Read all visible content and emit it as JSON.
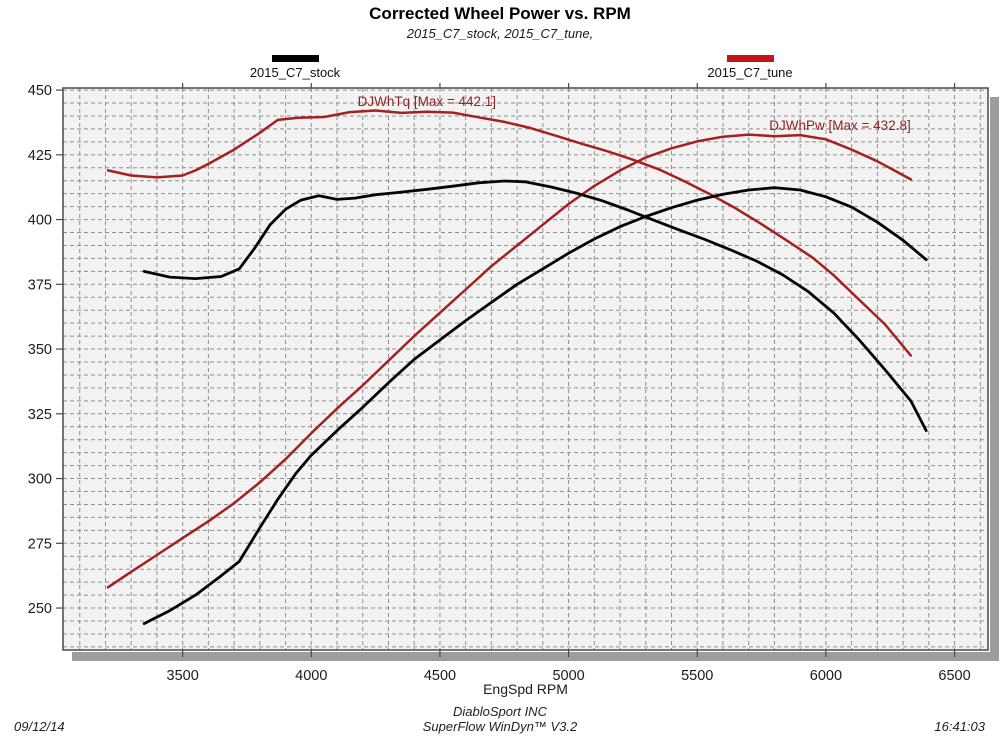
{
  "header": {
    "title": "Corrected Wheel Power vs. RPM",
    "subtitle": "2015_C7_stock, 2015_C7_tune,"
  },
  "legend": [
    {
      "label": "2015_C7_stock",
      "color": "#000000"
    },
    {
      "label": "2015_C7_tune",
      "color": "#c41414"
    }
  ],
  "footer": {
    "date": "09/12/14",
    "brand": "DiabloSport INC",
    "software": "SuperFlow WinDyn™ V3.2",
    "time": "16:41:03"
  },
  "chart_data": {
    "type": "line",
    "title": "Corrected Wheel Power vs. RPM",
    "subtitle": "2015_C7_stock, 2015_C7_tune,",
    "xlabel": "EngSpd RPM",
    "ylabel": "",
    "xlim": [
      3035,
      6630
    ],
    "ylim": [
      233.8,
      450.8
    ],
    "x_ticks": [
      3500,
      4000,
      4500,
      5000,
      5500,
      6000,
      6500
    ],
    "y_ticks": [
      250,
      275,
      300,
      325,
      350,
      375,
      400,
      425,
      450
    ],
    "grid": {
      "on": true,
      "x_minor_step": 100,
      "y_minor_step": 5,
      "dash": [
        4,
        3
      ],
      "color": "#8f8f8f"
    },
    "legend_position": "top",
    "annotations": [
      {
        "text": "DJWhTq [Max = 442.1]",
        "rpm": 4180,
        "value": 445.3,
        "color": "#8e2323"
      },
      {
        "text": "DJWhPw [Max = 432.8]",
        "rpm": 5780,
        "value": 436.2,
        "color": "#8e2323"
      }
    ],
    "series": [
      {
        "name": "2015_C7_tune DJWhTq",
        "run": "2015_C7_tune",
        "channel": "DJWhTq",
        "max": 442.1,
        "color": "#a32121",
        "width": 2.5,
        "points": [
          [
            3210,
            419
          ],
          [
            3300,
            417
          ],
          [
            3400,
            416.3
          ],
          [
            3500,
            417
          ],
          [
            3550,
            419
          ],
          [
            3600,
            421.5
          ],
          [
            3700,
            427
          ],
          [
            3800,
            433.5
          ],
          [
            3870,
            438.5
          ],
          [
            3950,
            439.3
          ],
          [
            4050,
            439.6
          ],
          [
            4150,
            441.5
          ],
          [
            4250,
            442.1
          ],
          [
            4350,
            441.2
          ],
          [
            4450,
            441.6
          ],
          [
            4550,
            441.3
          ],
          [
            4650,
            439.5
          ],
          [
            4750,
            437.7
          ],
          [
            4850,
            435.4
          ],
          [
            4950,
            432.4
          ],
          [
            5050,
            429.3
          ],
          [
            5150,
            426.4
          ],
          [
            5250,
            423.1
          ],
          [
            5350,
            419.4
          ],
          [
            5450,
            414.8
          ],
          [
            5550,
            409.8
          ],
          [
            5650,
            404.3
          ],
          [
            5750,
            398.2
          ],
          [
            5850,
            391.8
          ],
          [
            5950,
            385.2
          ],
          [
            6030,
            378.5
          ],
          [
            6130,
            369
          ],
          [
            6230,
            359.5
          ],
          [
            6330,
            347.5
          ]
        ]
      },
      {
        "name": "2015_C7_tune DJWhPw",
        "run": "2015_C7_tune",
        "channel": "DJWhPw",
        "max": 432.8,
        "color": "#a32121",
        "width": 2.5,
        "points": [
          [
            3210,
            258
          ],
          [
            3300,
            264
          ],
          [
            3400,
            270.5
          ],
          [
            3500,
            277
          ],
          [
            3600,
            283.5
          ],
          [
            3700,
            290.5
          ],
          [
            3800,
            298.5
          ],
          [
            3900,
            307.5
          ],
          [
            4000,
            317.5
          ],
          [
            4100,
            327
          ],
          [
            4200,
            336
          ],
          [
            4300,
            345.5
          ],
          [
            4400,
            355
          ],
          [
            4500,
            364
          ],
          [
            4600,
            373
          ],
          [
            4700,
            382
          ],
          [
            4800,
            390
          ],
          [
            4900,
            398
          ],
          [
            5000,
            406
          ],
          [
            5100,
            413
          ],
          [
            5200,
            419
          ],
          [
            5300,
            424
          ],
          [
            5400,
            427.5
          ],
          [
            5500,
            430.2
          ],
          [
            5600,
            432
          ],
          [
            5700,
            432.8
          ],
          [
            5800,
            432.2
          ],
          [
            5900,
            432.6
          ],
          [
            6000,
            431
          ],
          [
            6100,
            427
          ],
          [
            6200,
            422.5
          ],
          [
            6330,
            415.5
          ]
        ]
      },
      {
        "name": "2015_C7_stock DJWhTq",
        "run": "2015_C7_stock",
        "channel": "DJWhTq",
        "max": 414.9,
        "color": "#050505",
        "width": 2.8,
        "points": [
          [
            3350,
            380
          ],
          [
            3450,
            377.8
          ],
          [
            3550,
            377.2
          ],
          [
            3650,
            378
          ],
          [
            3720,
            381
          ],
          [
            3780,
            389
          ],
          [
            3840,
            398
          ],
          [
            3900,
            404
          ],
          [
            3960,
            407.5
          ],
          [
            4030,
            409.2
          ],
          [
            4100,
            407.8
          ],
          [
            4170,
            408.3
          ],
          [
            4250,
            409.6
          ],
          [
            4350,
            410.6
          ],
          [
            4450,
            411.7
          ],
          [
            4550,
            412.9
          ],
          [
            4650,
            414.2
          ],
          [
            4750,
            414.9
          ],
          [
            4830,
            414.6
          ],
          [
            4930,
            412.6
          ],
          [
            5030,
            410.2
          ],
          [
            5130,
            407.3
          ],
          [
            5230,
            403.7
          ],
          [
            5330,
            399.8
          ],
          [
            5430,
            396
          ],
          [
            5530,
            392.3
          ],
          [
            5630,
            388.3
          ],
          [
            5730,
            384
          ],
          [
            5830,
            378.8
          ],
          [
            5930,
            372.3
          ],
          [
            6030,
            364
          ],
          [
            6130,
            353.5
          ],
          [
            6230,
            342
          ],
          [
            6330,
            330
          ],
          [
            6390,
            318.5
          ]
        ]
      },
      {
        "name": "2015_C7_stock DJWhPw",
        "run": "2015_C7_stock",
        "channel": "DJWhPw",
        "max": 412.3,
        "color": "#050505",
        "width": 2.8,
        "points": [
          [
            3350,
            244
          ],
          [
            3450,
            249
          ],
          [
            3550,
            255
          ],
          [
            3650,
            262.5
          ],
          [
            3720,
            268
          ],
          [
            3800,
            281
          ],
          [
            3870,
            292
          ],
          [
            3940,
            302
          ],
          [
            4000,
            309
          ],
          [
            4100,
            318.5
          ],
          [
            4200,
            327.5
          ],
          [
            4300,
            337
          ],
          [
            4400,
            346
          ],
          [
            4500,
            353.5
          ],
          [
            4600,
            361
          ],
          [
            4700,
            368
          ],
          [
            4800,
            375
          ],
          [
            4900,
            381
          ],
          [
            5000,
            387
          ],
          [
            5100,
            392.5
          ],
          [
            5200,
            397.3
          ],
          [
            5300,
            401.2
          ],
          [
            5400,
            404.6
          ],
          [
            5500,
            407.5
          ],
          [
            5600,
            409.8
          ],
          [
            5700,
            411.4
          ],
          [
            5800,
            412.3
          ],
          [
            5900,
            411.4
          ],
          [
            6000,
            408.8
          ],
          [
            6100,
            404.8
          ],
          [
            6200,
            399
          ],
          [
            6300,
            392
          ],
          [
            6390,
            384.5
          ]
        ]
      }
    ]
  }
}
